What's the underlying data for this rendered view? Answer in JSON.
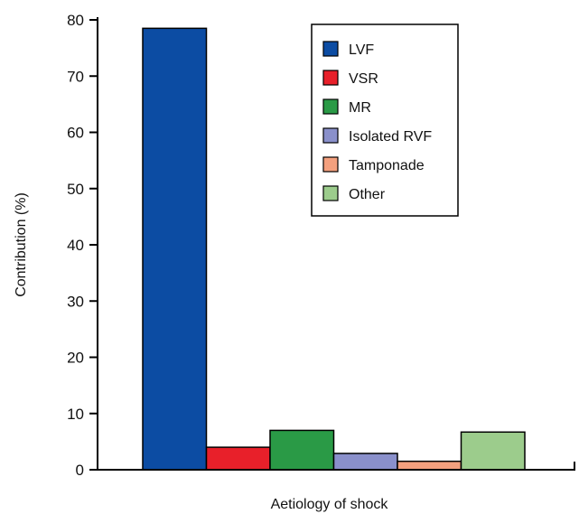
{
  "chart_data": {
    "type": "bar",
    "title": "",
    "xlabel": "Aetiology of shock",
    "ylabel": "Contribution (%)",
    "ylim": [
      0,
      80
    ],
    "yticks": [
      0,
      10,
      20,
      30,
      40,
      50,
      60,
      70,
      80
    ],
    "grid": false,
    "legend_position": "top-right",
    "series": [
      {
        "name": "LVF",
        "value": 78.5,
        "color": "#0c4ca3"
      },
      {
        "name": "VSR",
        "value": 4.0,
        "color": "#e8202a"
      },
      {
        "name": "MR",
        "value": 7.0,
        "color": "#2a9a46"
      },
      {
        "name": "Isolated RVF",
        "value": 2.9,
        "color": "#8a90cb"
      },
      {
        "name": "Tamponade",
        "value": 1.5,
        "color": "#f4a07e"
      },
      {
        "name": "Other",
        "value": 6.7,
        "color": "#9ccc8c"
      }
    ]
  }
}
